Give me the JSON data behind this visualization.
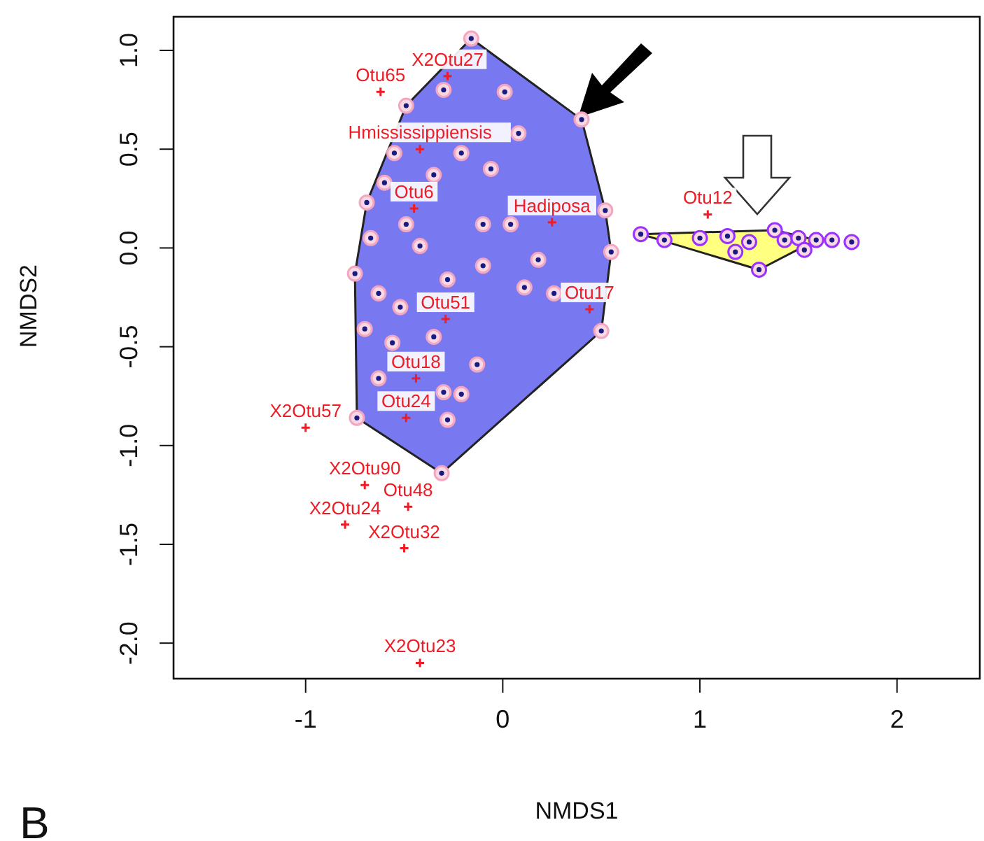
{
  "chart_data": {
    "type": "scatter",
    "xlabel": "NMDS1",
    "ylabel": "NMDS2",
    "xlim": [
      -1.67,
      2.42
    ],
    "ylim": [
      -2.18,
      1.17
    ],
    "xticks": [
      -1,
      0,
      1,
      2
    ],
    "yticks": [
      {
        "value": -2,
        "label": "-2.0"
      },
      -1.5,
      {
        "value": -1,
        "label": "-1.0"
      },
      -0.5,
      {
        "value": 0,
        "label": "0.0"
      },
      0.5,
      {
        "value": 1,
        "label": "1.0"
      }
    ],
    "grid": false,
    "legend": false,
    "marker": "circle",
    "series": [
      {
        "type": "area",
        "color": "#7878f0",
        "x": [
          -0.16,
          0.4,
          0.52,
          0.55,
          0.5,
          -0.31,
          -0.74,
          -0.75,
          -0.69,
          -0.49
        ],
        "values": [
          1.06,
          0.65,
          0.19,
          -0.02,
          -0.42,
          -1.14,
          -0.86,
          -0.13,
          0.23,
          0.72
        ]
      },
      {
        "type": "area",
        "color": "#ffff80",
        "x": [
          0.7,
          1.38,
          1.59,
          1.3
        ],
        "values": [
          0.07,
          0.09,
          0.04,
          -0.11
        ]
      },
      {
        "type": "scatter",
        "color": "#f4a6c0",
        "x": [
          -0.16,
          0.4,
          0.52,
          0.55,
          0.5,
          -0.31,
          -0.74,
          -0.75,
          -0.69,
          -0.49,
          -0.3,
          0.01,
          0.08,
          -0.21,
          -0.06,
          -0.35,
          -0.55,
          -0.6,
          -0.49,
          -0.42,
          -0.1,
          0.04,
          0.18,
          -0.67,
          -0.63,
          -0.52,
          -0.28,
          -0.1,
          0.11,
          0.26,
          -0.7,
          -0.56,
          -0.35,
          -0.13,
          -0.63,
          -0.3,
          -0.21,
          -0.28
        ],
        "values": [
          1.06,
          0.65,
          0.19,
          -0.02,
          -0.42,
          -1.14,
          -0.86,
          -0.13,
          0.23,
          0.72,
          0.8,
          0.79,
          0.58,
          0.48,
          0.4,
          0.37,
          0.48,
          0.33,
          0.12,
          0.01,
          0.12,
          0.12,
          -0.06,
          0.05,
          -0.23,
          -0.3,
          -0.16,
          -0.09,
          -0.2,
          -0.23,
          -0.41,
          -0.48,
          -0.45,
          -0.59,
          -0.66,
          -0.73,
          -0.74,
          -0.87
        ]
      },
      {
        "type": "scatter",
        "color": "#9b30ff",
        "x": [
          0.7,
          0.82,
          1.0,
          1.14,
          1.25,
          1.38,
          1.43,
          1.5,
          1.59,
          1.3,
          1.18,
          1.67,
          1.77,
          1.53
        ],
        "values": [
          0.07,
          0.04,
          0.05,
          0.06,
          0.03,
          0.09,
          0.04,
          0.05,
          0.04,
          -0.11,
          -0.02,
          0.04,
          0.03,
          -0.01
        ]
      },
      {
        "type": "scatter",
        "marker": "cross",
        "color": "#ee1c25",
        "x": [
          -0.28,
          -0.62,
          -0.42,
          -0.45,
          0.25,
          1.04,
          -0.29,
          0.44,
          -0.44,
          -0.49,
          -1.0,
          -0.7,
          -0.48,
          -0.8,
          -0.5,
          -0.42
        ],
        "values": [
          0.87,
          0.79,
          0.5,
          0.2,
          0.13,
          0.17,
          -0.36,
          -0.31,
          -0.66,
          -0.86,
          -0.91,
          -1.2,
          -1.31,
          -1.4,
          -1.52,
          -2.1
        ],
        "value_labels": [
          "X2Otu27",
          "Otu65",
          "Hmississippiensis",
          "Otu6",
          "Hadiposa",
          "Otu12",
          "Otu51",
          "Otu17",
          "Otu18",
          "Otu24",
          "X2Otu57",
          "X2Otu90",
          "Otu48",
          "X2Otu24",
          "X2Otu32",
          "X2Otu23"
        ]
      }
    ],
    "annotations": [
      "B"
    ]
  }
}
